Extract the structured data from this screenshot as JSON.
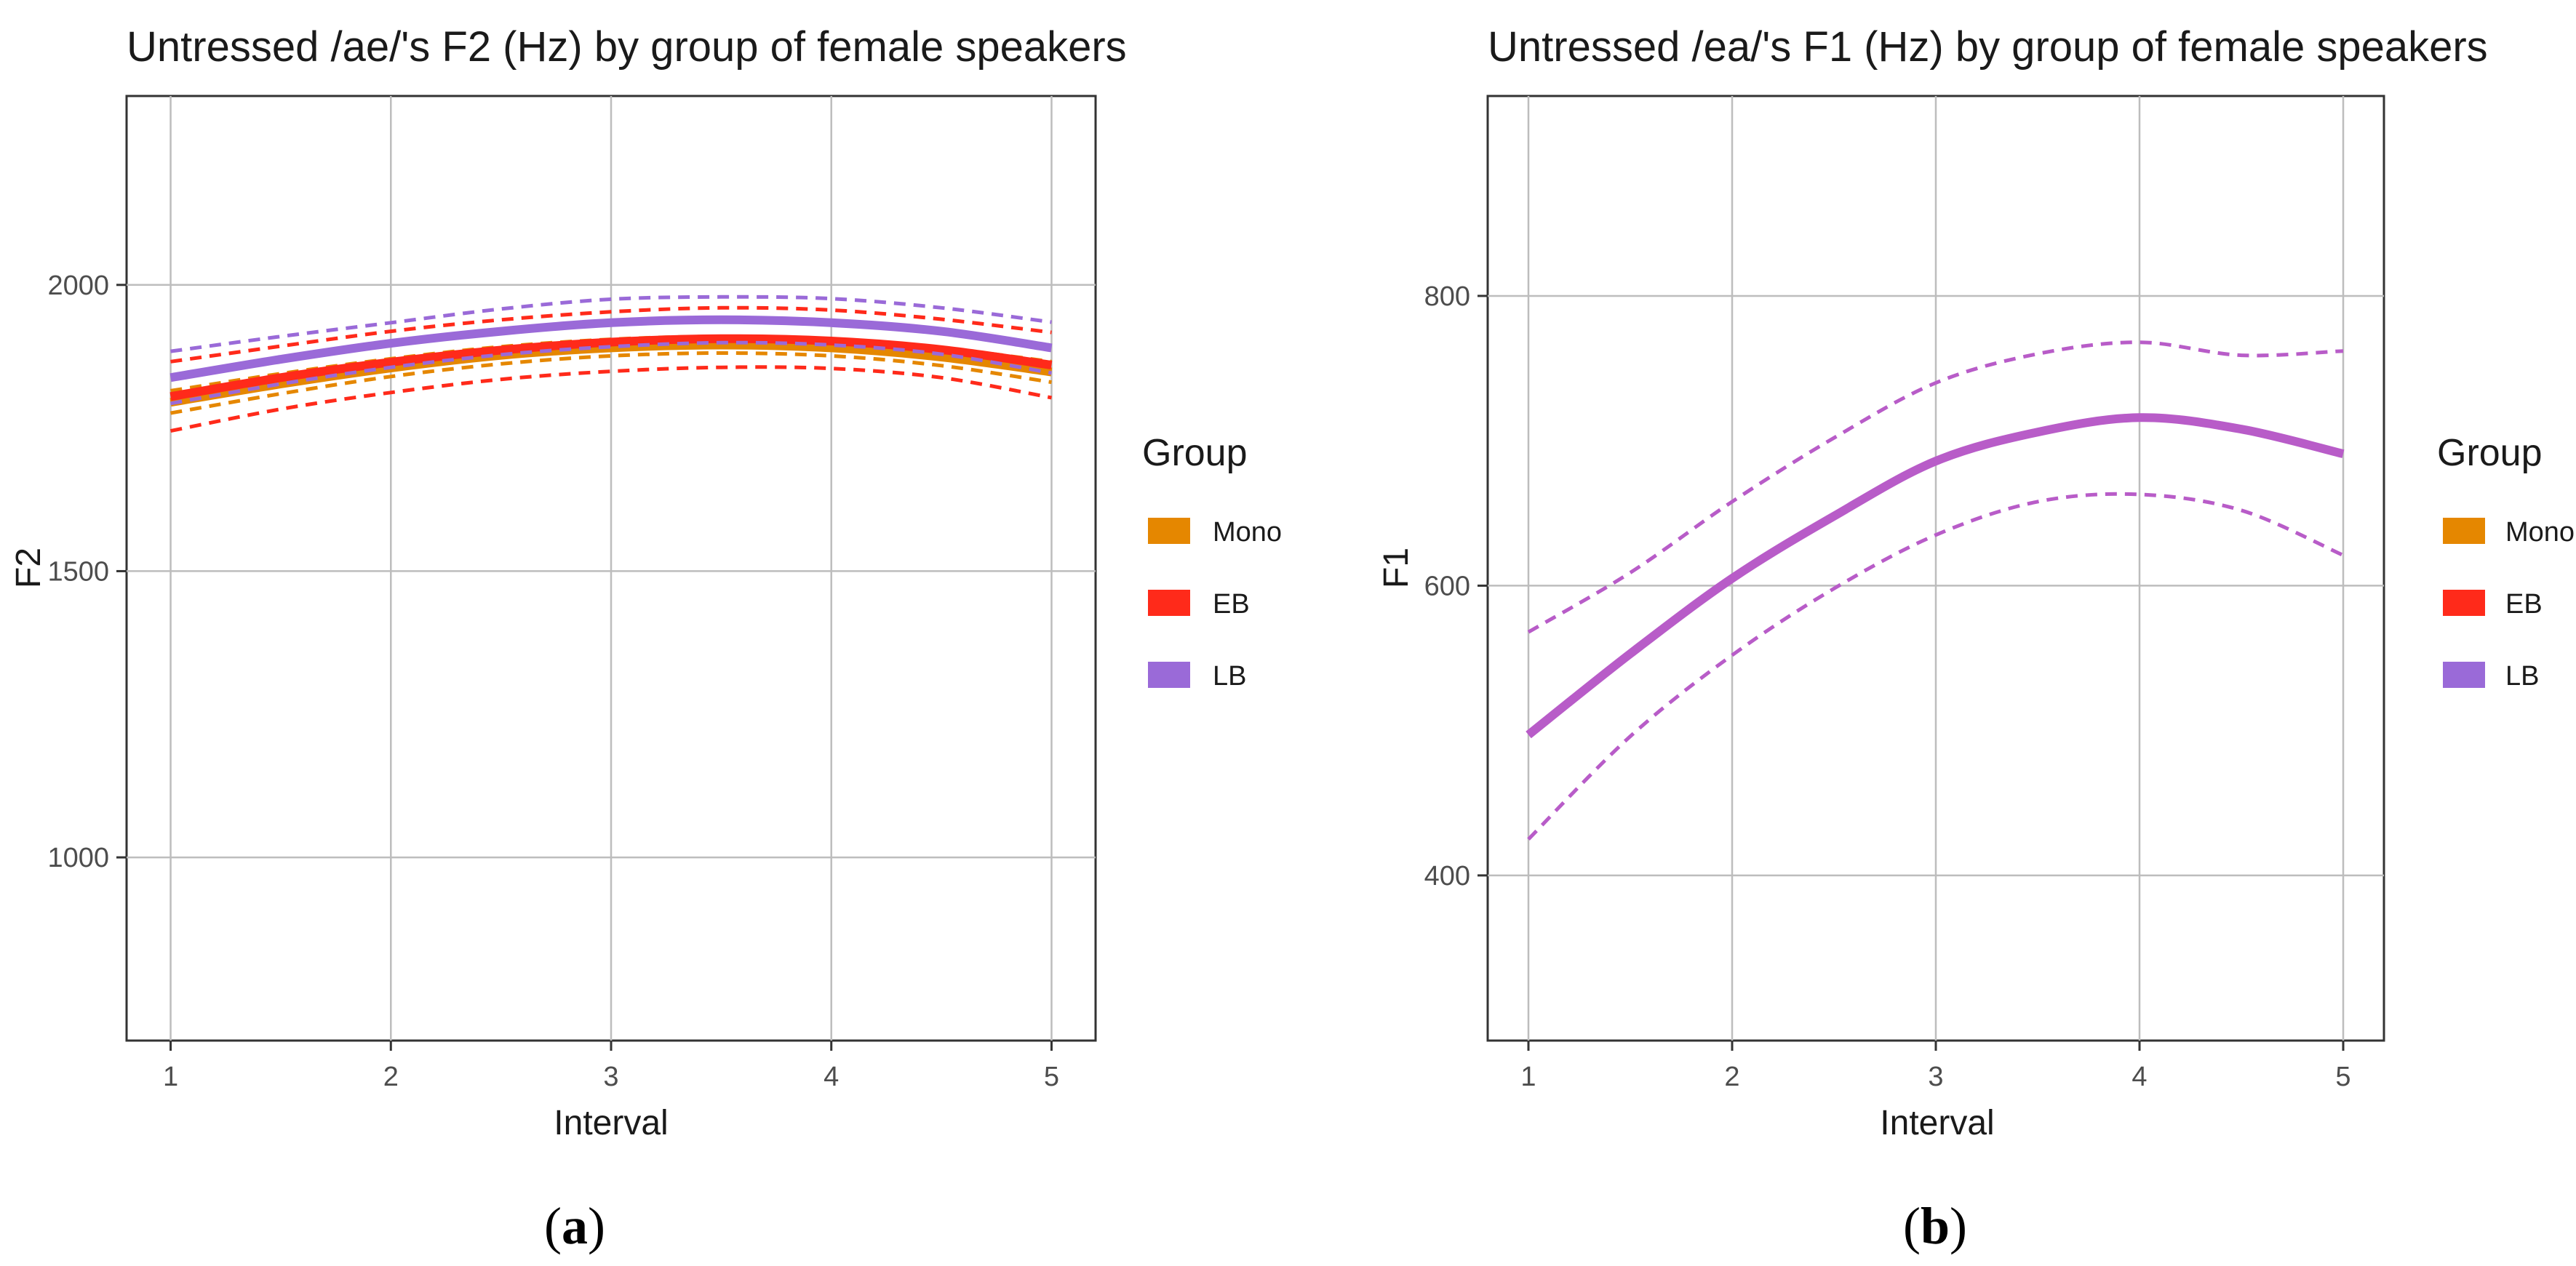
{
  "chart_data": [
    {
      "type": "line",
      "title": "Untressed /ae/'s F2 (Hz) by group of female speakers",
      "xlabel": "Interval",
      "ylabel": "F2",
      "xlim": [
        0.8,
        5.2
      ],
      "ylim": [
        680,
        2330
      ],
      "x_ticks": [
        1,
        2,
        3,
        4,
        5
      ],
      "y_ticks": [
        1000,
        1500,
        2000
      ],
      "x": [
        1,
        1.5,
        2,
        2.5,
        3,
        3.5,
        4,
        4.5,
        5
      ],
      "series": [
        {
          "name": "Mono",
          "color": "#E58700",
          "fit": [
            1795,
            1827,
            1855,
            1877,
            1890,
            1895,
            1890,
            1874,
            1848
          ],
          "lower": [
            1776,
            1810,
            1840,
            1862,
            1876,
            1881,
            1876,
            1859,
            1830
          ],
          "upper": [
            1815,
            1845,
            1871,
            1892,
            1905,
            1910,
            1905,
            1890,
            1866
          ]
        },
        {
          "name": "EB",
          "color": "#FF2A1A",
          "fit": [
            1805,
            1838,
            1865,
            1886,
            1900,
            1906,
            1902,
            1887,
            1860
          ],
          "lower": [
            1745,
            1783,
            1812,
            1835,
            1849,
            1856,
            1854,
            1838,
            1803
          ],
          "upper": [
            1866,
            1893,
            1919,
            1939,
            1953,
            1960,
            1956,
            1940,
            1917
          ]
        },
        {
          "name": "LB",
          "color": "#9A6AD8",
          "fit": [
            1838,
            1870,
            1898,
            1919,
            1934,
            1939,
            1934,
            1919,
            1890
          ],
          "lower": [
            1793,
            1827,
            1856,
            1878,
            1892,
            1899,
            1895,
            1879,
            1846
          ],
          "upper": [
            1884,
            1910,
            1934,
            1958,
            1975,
            1979,
            1976,
            1960,
            1935
          ]
        }
      ],
      "legend": {
        "title": "Group",
        "entries": [
          "Mono",
          "EB",
          "LB"
        ]
      },
      "caption": "(a)"
    },
    {
      "type": "line",
      "title": "Untressed /ea/'s F1 (Hz) by group of female speakers",
      "xlabel": "Interval",
      "ylabel": "F1",
      "xlim": [
        0.8,
        5.2
      ],
      "ylim": [
        286,
        938
      ],
      "x_ticks": [
        1,
        2,
        3,
        4,
        5
      ],
      "y_ticks": [
        400,
        600,
        800
      ],
      "x": [
        1,
        1.5,
        2,
        2.5,
        3,
        3.5,
        4,
        4.5,
        5
      ],
      "series": [
        {
          "name": "LB",
          "color": "#B85CC8",
          "fit": [
            497,
            553,
            605,
            648,
            686,
            706,
            716,
            708,
            691
          ],
          "lower": [
            425,
            496,
            552,
            598,
            635,
            658,
            663,
            652,
            621
          ],
          "upper": [
            568,
            609,
            658,
            702,
            740,
            760,
            768,
            759,
            762
          ]
        }
      ],
      "legend": {
        "title": "Group",
        "entries": [
          "Mono",
          "EB",
          "LB"
        ]
      },
      "caption": "(b)"
    }
  ],
  "legend_colors": {
    "Mono": "#E58700",
    "EB": "#FF2A1A",
    "LB": "#9A6AD8"
  }
}
